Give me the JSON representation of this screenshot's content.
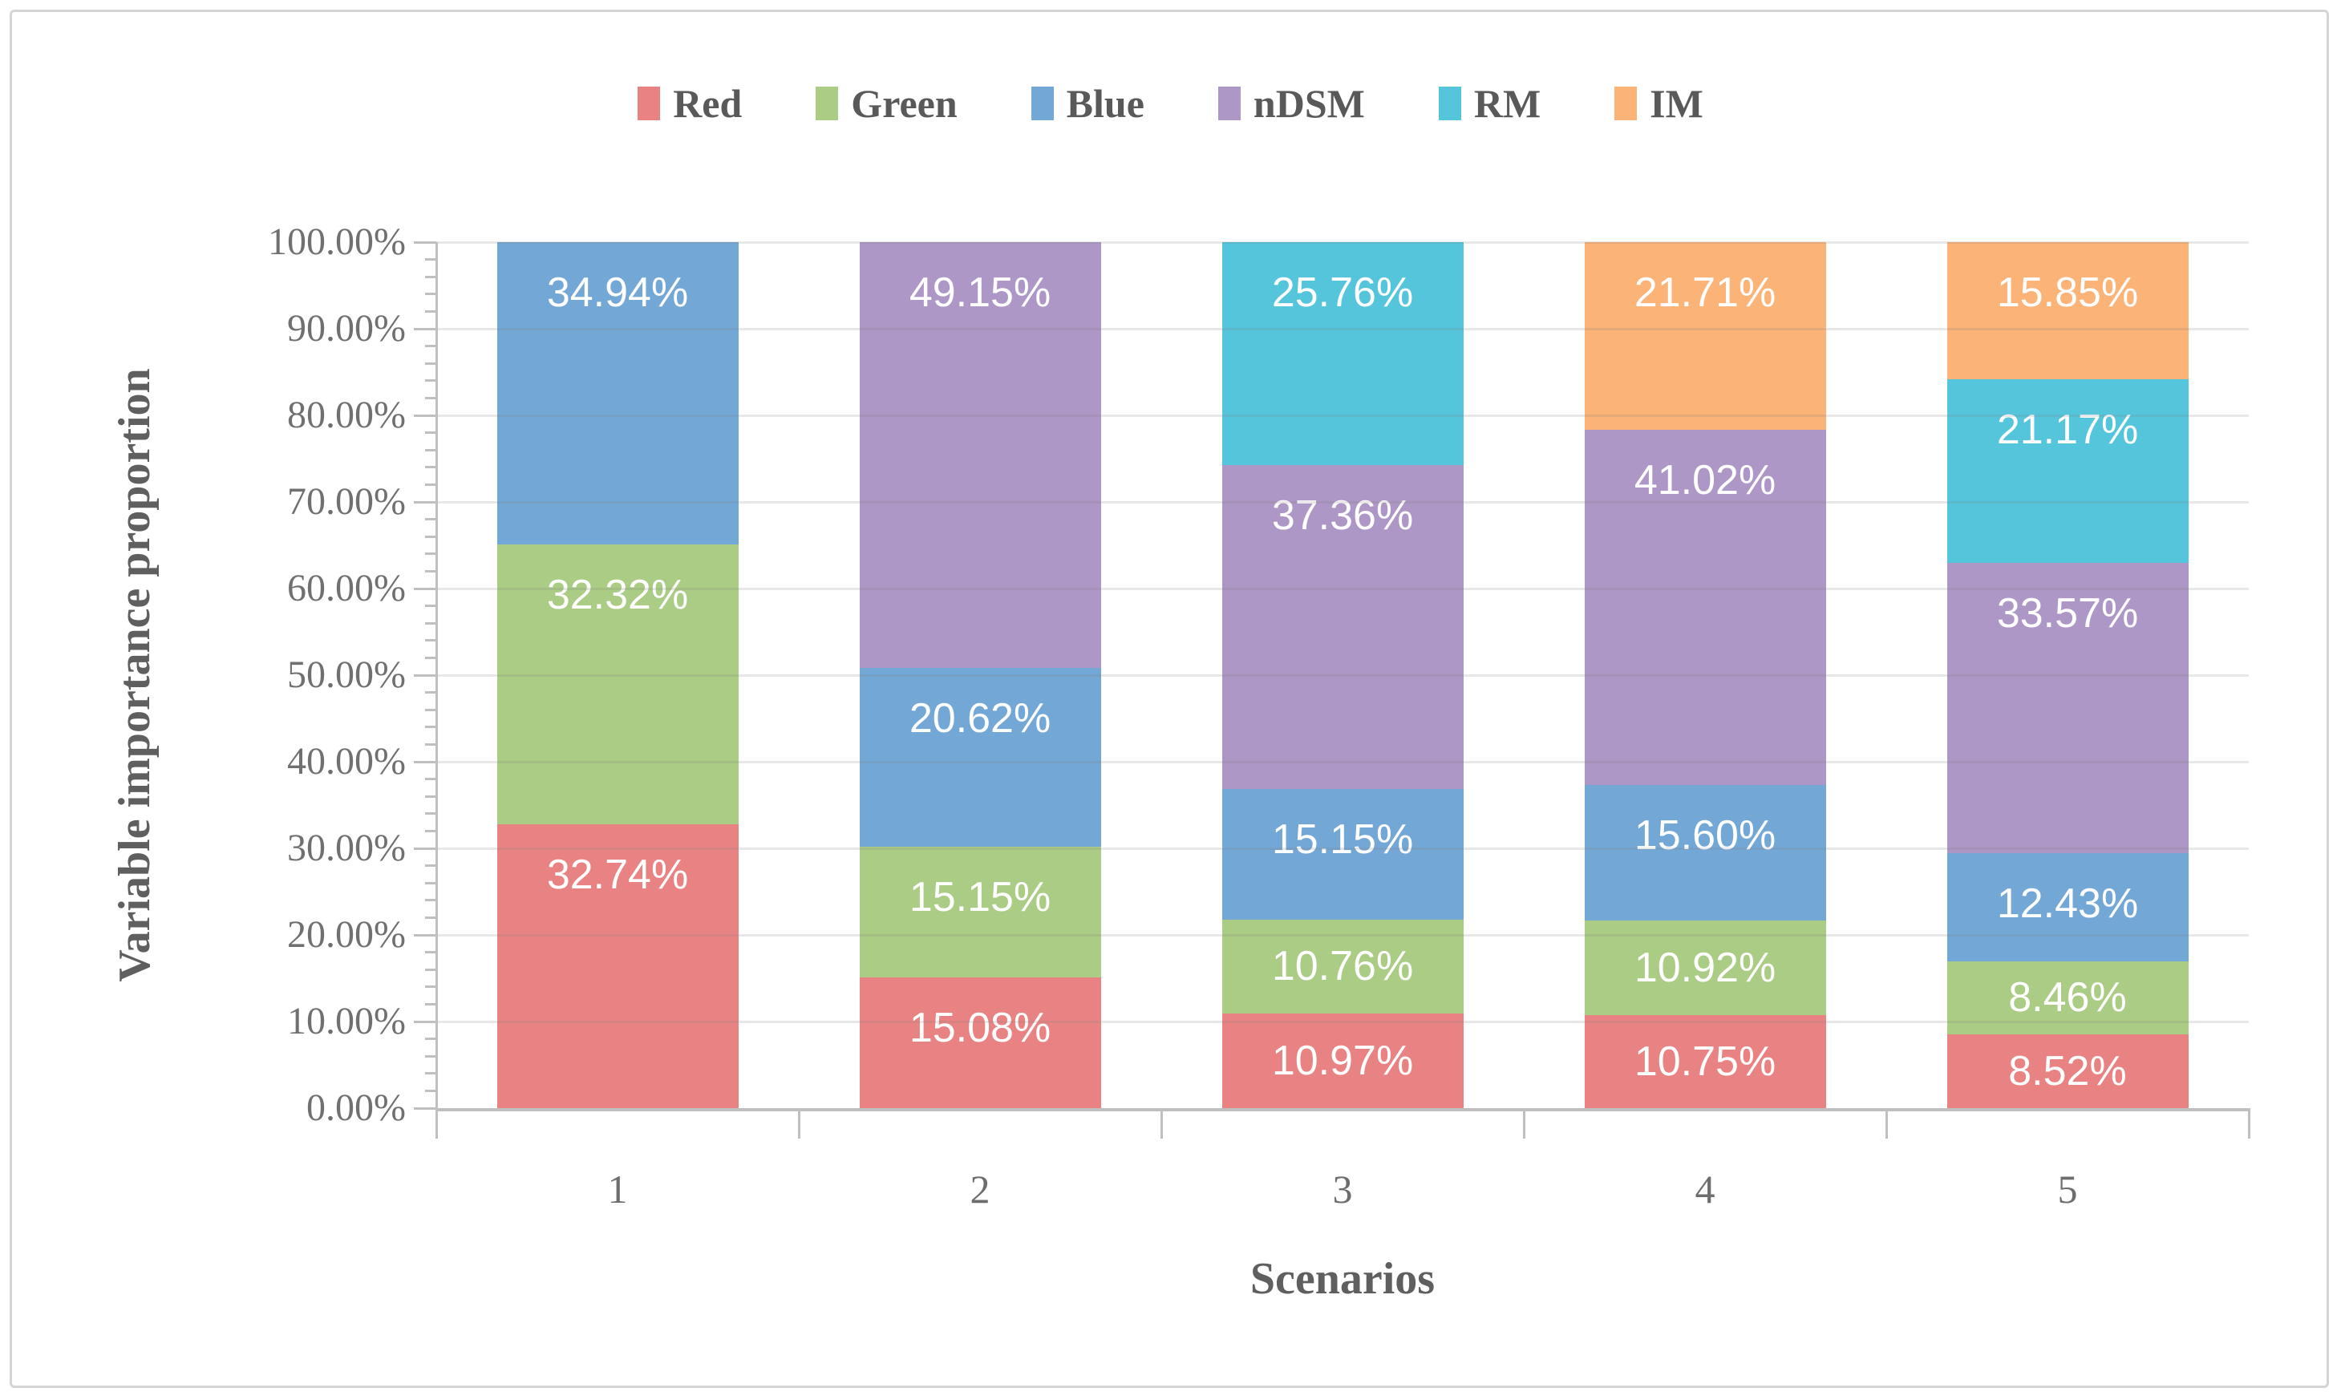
{
  "chart_data": {
    "type": "bar",
    "stacked": true,
    "orientation": "vertical",
    "xlabel": "Scenarios",
    "ylabel": "Variable importance proportion",
    "categories": [
      "1",
      "2",
      "3",
      "4",
      "5"
    ],
    "series": [
      {
        "name": "Red",
        "color": "#e98383",
        "values": [
          32.74,
          15.08,
          10.97,
          10.75,
          8.52
        ]
      },
      {
        "name": "Green",
        "color": "#aacc84",
        "values": [
          32.32,
          15.15,
          10.76,
          10.92,
          8.46
        ]
      },
      {
        "name": "Blue",
        "color": "#73a7d5",
        "values": [
          34.94,
          20.62,
          15.15,
          15.6,
          12.43
        ]
      },
      {
        "name": "nDSM",
        "color": "#ad97c6",
        "values": [
          0,
          49.15,
          37.36,
          41.02,
          33.57
        ]
      },
      {
        "name": "RM",
        "color": "#55c5dc",
        "values": [
          0,
          0,
          25.76,
          0,
          21.17
        ]
      },
      {
        "name": "IM",
        "color": "#fcb377",
        "values": [
          0,
          0,
          0,
          21.71,
          15.85
        ]
      }
    ],
    "data_label_suffix": "%",
    "data_label_decimals": 2,
    "y_ticks": [
      "100.00%",
      "90.00%",
      "80.00%",
      "70.00%",
      "60.00%",
      "50.00%",
      "40.00%",
      "30.00%",
      "20.00%",
      "10.00%",
      "0.00%"
    ],
    "ylim": [
      0,
      100
    ],
    "y_major_step": 10,
    "y_minor_step": 2,
    "grid": true,
    "legend_position": "top",
    "colors": {
      "axis": "#bfbfbf",
      "grid_overlay": "rgba(128,128,128,0.18)",
      "tick_text": "#707070",
      "title_text": "#5f5f5f",
      "legend_text": "#595959",
      "data_label_text": "#ffffff",
      "background": "#ffffff",
      "frame": "#d5d5d5"
    }
  }
}
